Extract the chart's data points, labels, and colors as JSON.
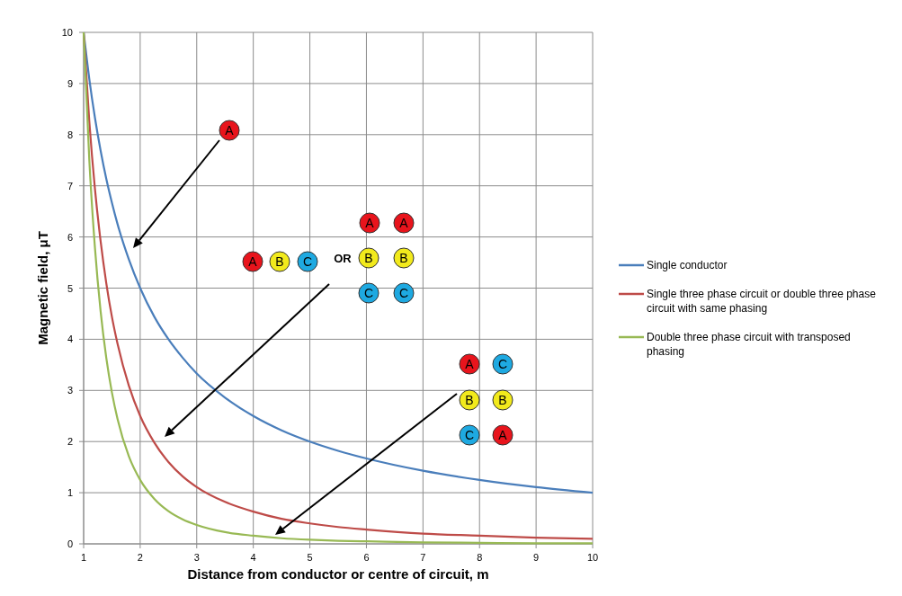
{
  "chart_data": {
    "type": "line",
    "xlabel": "Distance from conductor or centre of circuit, m",
    "ylabel": "Magnetic field, μT",
    "x": [
      1,
      1.1,
      1.2,
      1.3,
      1.4,
      1.5,
      1.6,
      1.8,
      2,
      2.25,
      2.5,
      2.75,
      3,
      3.5,
      4,
      4.5,
      5,
      5.5,
      6,
      7,
      8,
      9,
      10
    ],
    "series": [
      {
        "name": "Single conductor",
        "color": "#4a7ebb",
        "values": [
          10,
          9.09,
          8.33,
          7.69,
          7.14,
          6.67,
          6.25,
          5.56,
          5,
          4.44,
          4,
          3.64,
          3.33,
          2.86,
          2.5,
          2.22,
          2,
          1.82,
          1.67,
          1.43,
          1.25,
          1.11,
          1
        ]
      },
      {
        "name": "Single three phase circuit or double three phase circuit with same phasing",
        "color": "#be4b48",
        "values": [
          10,
          8.26,
          6.94,
          5.92,
          5.1,
          4.44,
          3.91,
          3.09,
          2.5,
          1.98,
          1.6,
          1.32,
          1.11,
          0.82,
          0.63,
          0.49,
          0.4,
          0.33,
          0.28,
          0.2,
          0.16,
          0.12,
          0.1
        ]
      },
      {
        "name": "Double three phase circuit with transposed phasing",
        "color": "#98b954",
        "values": [
          10,
          7.51,
          5.79,
          4.55,
          3.64,
          2.96,
          2.44,
          1.71,
          1.25,
          0.88,
          0.64,
          0.48,
          0.37,
          0.23,
          0.16,
          0.11,
          0.08,
          0.06,
          0.05,
          0.03,
          0.02,
          0.01,
          0.01
        ]
      }
    ],
    "xlim": [
      1,
      10
    ],
    "xticks": [
      1,
      2,
      3,
      4,
      5,
      6,
      7,
      8,
      9,
      10
    ],
    "ylim": [
      0,
      10
    ],
    "yticks": [
      0,
      1,
      2,
      3,
      4,
      5,
      6,
      7,
      8,
      9,
      10
    ],
    "grid": true,
    "legend": "right",
    "marker": "none",
    "line_style": "solid",
    "annotations": [
      "A",
      "A",
      "B",
      "C",
      "OR",
      "A",
      "A",
      "B",
      "B",
      "C",
      "C",
      "A",
      "C",
      "B",
      "B",
      "C",
      "A"
    ]
  }
}
